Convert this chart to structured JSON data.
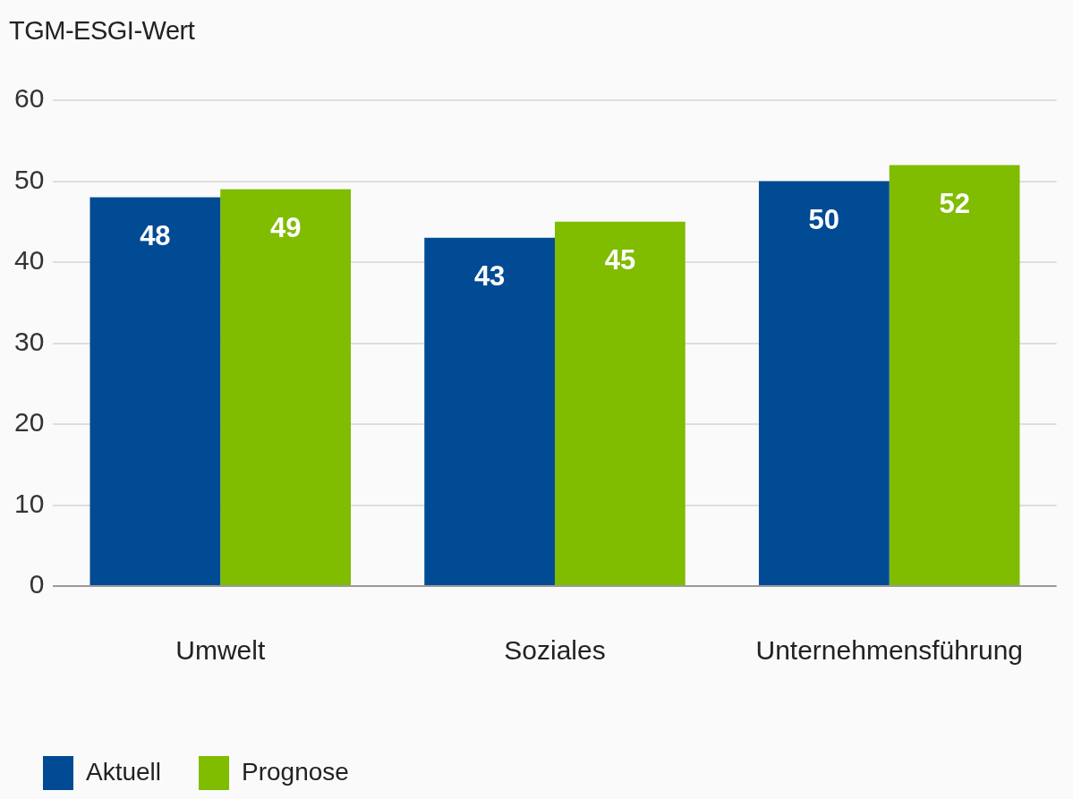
{
  "chart_data": {
    "type": "bar",
    "ylabel": "TGM-ESGI-Wert",
    "categories": [
      "Umwelt",
      "Soziales",
      "Unternehmensführung"
    ],
    "series": [
      {
        "name": "Aktuell",
        "color": "#004b93",
        "values": [
          48,
          43,
          50
        ]
      },
      {
        "name": "Prognose",
        "color": "#80bc00",
        "values": [
          49,
          45,
          52
        ]
      }
    ],
    "ylim": [
      0,
      60
    ],
    "yticks": [
      0,
      10,
      20,
      30,
      40,
      50,
      60
    ],
    "grid": "y",
    "legend": "bottom left",
    "data_labels": true
  }
}
